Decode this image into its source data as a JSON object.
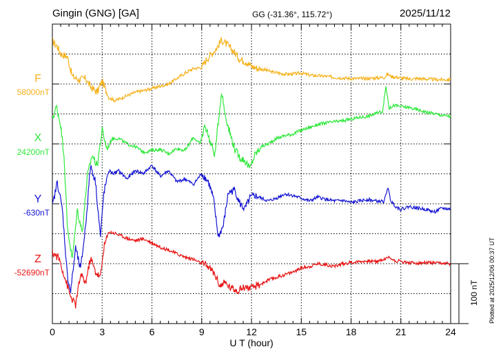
{
  "header": {
    "station": "Gingin (GNG)  [GA]",
    "coords": "GG (-31.36°, 115.72°)",
    "date": "2025/11/12"
  },
  "plotted_note": "Plotted at 2025/12/06 00:37 UT",
  "scale_label": "100 nT",
  "chart_data": {
    "type": "line",
    "xlabel": "U T (hour)",
    "xlim": [
      0,
      24
    ],
    "xticks": [
      0,
      3,
      6,
      9,
      12,
      15,
      18,
      21,
      24
    ],
    "grid": true,
    "scale_bar_nT": 100,
    "series": [
      {
        "name": "F",
        "baseline": "58000nT",
        "color": "#f5b21e",
        "x": [
          0,
          0.3,
          0.5,
          0.7,
          0.9,
          1.2,
          1.6,
          2.0,
          2.3,
          2.7,
          3.0,
          3.4,
          3.8,
          4.2,
          4.6,
          5.0,
          5.5,
          6.0,
          6.5,
          7.0,
          7.5,
          8.0,
          8.5,
          9.0,
          9.3,
          9.6,
          9.9,
          10.2,
          10.5,
          10.9,
          11.3,
          11.7,
          12.0,
          12.4,
          12.8,
          13.2,
          13.6,
          14.0,
          14.5,
          15.0,
          15.5,
          16.0,
          16.5,
          17.0,
          17.5,
          18.0,
          18.5,
          19.0,
          19.5,
          20.0,
          20.2,
          20.4,
          20.8,
          21.2,
          21.6,
          22.0,
          22.5,
          23.0,
          23.5,
          24.0
        ],
        "y": [
          78,
          68,
          55,
          52,
          50,
          14,
          8,
          10,
          -5,
          -15,
          5,
          -25,
          -30,
          -25,
          -20,
          -15,
          -12,
          -8,
          -4,
          0,
          10,
          20,
          28,
          30,
          45,
          55,
          65,
          80,
          72,
          60,
          45,
          40,
          32,
          28,
          26,
          22,
          20,
          18,
          18,
          20,
          16,
          15,
          14,
          12,
          11,
          10,
          10,
          10,
          11,
          12,
          18,
          14,
          12,
          10,
          9,
          10,
          9,
          8,
          8,
          8
        ]
      },
      {
        "name": "X",
        "baseline": "24200nT",
        "color": "#2ee83a",
        "x": [
          0,
          0.25,
          0.5,
          0.7,
          0.9,
          1.2,
          1.5,
          1.8,
          2.1,
          2.4,
          2.7,
          3.0,
          3.3,
          3.6,
          4.0,
          4.5,
          5.0,
          5.5,
          6.0,
          6.5,
          7.0,
          7.5,
          8.0,
          8.5,
          8.9,
          9.2,
          9.5,
          9.8,
          10.0,
          10.2,
          10.4,
          10.7,
          11.0,
          11.3,
          11.6,
          11.9,
          12.2,
          12.6,
          13.0,
          13.5,
          14.0,
          14.5,
          15.0,
          15.5,
          16.0,
          16.5,
          17.0,
          17.5,
          18.0,
          18.5,
          19.0,
          19.5,
          19.9,
          20.1,
          20.3,
          20.6,
          21.0,
          21.5,
          22.0,
          22.5,
          23.0,
          23.5,
          24.0
        ],
        "y": [
          45,
          68,
          35,
          -20,
          -150,
          -210,
          -120,
          -160,
          -60,
          -20,
          -40,
          25,
          -10,
          10,
          10,
          0,
          -5,
          -15,
          -12,
          -10,
          -18,
          -8,
          -12,
          12,
          0,
          35,
          5,
          -20,
          40,
          95,
          55,
          20,
          -10,
          -25,
          -30,
          -45,
          -20,
          -5,
          0,
          10,
          15,
          18,
          25,
          30,
          35,
          38,
          40,
          42,
          45,
          48,
          50,
          55,
          60,
          105,
          65,
          70,
          68,
          66,
          62,
          58,
          55,
          52,
          50
        ]
      },
      {
        "name": "Y",
        "baseline": "-630nT",
        "color": "#1414d4",
        "x": [
          0,
          0.3,
          0.6,
          0.9,
          1.1,
          1.4,
          1.7,
          2.0,
          2.3,
          2.6,
          2.9,
          3.1,
          3.4,
          3.7,
          4.0,
          4.5,
          5.0,
          5.5,
          6.0,
          6.5,
          7.0,
          7.5,
          8.0,
          8.5,
          9.0,
          9.4,
          9.7,
          10.0,
          10.3,
          10.6,
          11.0,
          11.3,
          11.6,
          11.9,
          12.2,
          12.6,
          13.0,
          13.5,
          14.0,
          14.5,
          15.0,
          15.5,
          16.0,
          16.5,
          17.0,
          17.5,
          18.0,
          18.5,
          19.0,
          19.5,
          20.0,
          20.2,
          20.4,
          20.7,
          21.0,
          21.5,
          22.0,
          22.5,
          23.0,
          23.5,
          24.0
        ],
        "y": [
          -5,
          40,
          -10,
          -130,
          -160,
          -80,
          -120,
          -40,
          70,
          40,
          -60,
          20,
          60,
          55,
          60,
          45,
          60,
          55,
          70,
          50,
          60,
          40,
          45,
          35,
          55,
          40,
          10,
          -60,
          -40,
          20,
          25,
          0,
          -10,
          10,
          15,
          10,
          5,
          10,
          18,
          15,
          10,
          5,
          12,
          8,
          5,
          6,
          2,
          5,
          8,
          5,
          4,
          30,
          5,
          -5,
          -10,
          -5,
          -8,
          -10,
          -15,
          -8,
          -10
        ]
      },
      {
        "name": "Z",
        "baseline": "-52690nT",
        "color": "#e81414",
        "x": [
          0,
          0.4,
          0.8,
          1.1,
          1.4,
          1.7,
          2.0,
          2.3,
          2.6,
          2.9,
          3.1,
          3.4,
          3.8,
          4.2,
          4.6,
          5.0,
          5.5,
          6.0,
          6.5,
          7.0,
          7.5,
          8.0,
          8.5,
          9.0,
          9.4,
          9.8,
          10.1,
          10.4,
          10.8,
          11.2,
          11.6,
          12.0,
          12.5,
          13.0,
          13.5,
          14.0,
          14.5,
          15.0,
          15.5,
          16.0,
          16.5,
          17.0,
          17.5,
          18.0,
          18.5,
          19.0,
          19.5,
          20.0,
          20.3,
          20.6,
          21.0,
          21.5,
          22.0,
          22.5,
          23.0,
          23.5,
          24.0
        ],
        "y": [
          20,
          10,
          -30,
          -60,
          -75,
          -20,
          -35,
          10,
          -15,
          -25,
          30,
          58,
          55,
          50,
          45,
          42,
          45,
          38,
          30,
          25,
          18,
          12,
          8,
          0,
          -5,
          -20,
          -40,
          -35,
          -45,
          -48,
          -42,
          -45,
          -38,
          -30,
          -25,
          -20,
          -15,
          -8,
          -5,
          0,
          -2,
          -5,
          0,
          2,
          4,
          5,
          4,
          8,
          12,
          6,
          4,
          2,
          1,
          2,
          1,
          0,
          0
        ]
      }
    ]
  }
}
